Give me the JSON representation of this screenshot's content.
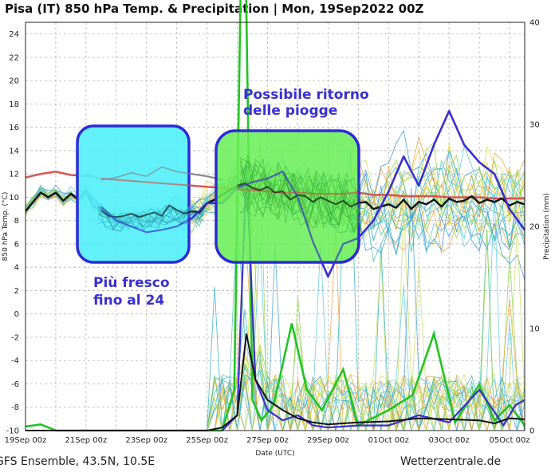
{
  "chart_data": {
    "type": "line",
    "title": "Pisa  (IT)  850 hPa Temp. & Precipitation | Mon, 19Sep2022 00Z",
    "xlabel": "Date (UTC)",
    "ylabel": "850 hPa Temp. (°C)",
    "y2label": "Precipitation (mm)",
    "xticks": [
      "19Sep 00z",
      "21Sep 00z",
      "23Sep 00z",
      "25Sep 00z",
      "27Sep 00z",
      "29Sep 00z",
      "01Oct 00z",
      "03Oct 00z",
      "05Oct 00z"
    ],
    "xrange_days": [
      0,
      16.5
    ],
    "ylim": [
      -10,
      25
    ],
    "yticks": [
      "24",
      "22",
      "20",
      "18",
      "16",
      "14",
      "12",
      "10",
      "8",
      "6",
      "4",
      "2",
      "0",
      "-2",
      "-4",
      "-6",
      "-8",
      "-10"
    ],
    "y2lim": [
      0,
      40
    ],
    "y2ticks": [
      "40",
      "30",
      "20",
      "10",
      "0"
    ],
    "grid": true,
    "footer_left": "GFS Ensemble, 43.5N, 10.5E",
    "footer_right": "Wetterzentrale.de",
    "colors": {
      "climate": "#d9534f",
      "operational": "#3a2fd0",
      "control": "#8a8a8a",
      "mean": "#111111",
      "precip_op": "#22c422",
      "member_palette": [
        "#2ab0c8",
        "#5cc7e8",
        "#3e9bd6",
        "#8fd14f",
        "#e8d84a",
        "#f0a040",
        "#c8e060",
        "#4cc3a8"
      ],
      "box_cyan_fill": "#55f0fa",
      "box_green_fill": "#66ee55",
      "box_stroke": "#2e2ad6",
      "annotation_text": "#3a2fd0"
    },
    "series": [
      {
        "role": "climate",
        "x": [
          0,
          0.5,
          1,
          1.5,
          2,
          2.5,
          3,
          3.5,
          4,
          4.5,
          5,
          5.5,
          6,
          6.5,
          7,
          7.5,
          8,
          8.5,
          9,
          9.5,
          10,
          10.5,
          11,
          11.5,
          12,
          12.5,
          13,
          13.5,
          14,
          14.5,
          15,
          15.5,
          16,
          16.5
        ],
        "values": [
          11.7,
          12.0,
          12.2,
          11.9,
          11.8,
          11.6,
          11.5,
          11.4,
          11.3,
          11.2,
          11.1,
          11.0,
          10.9,
          10.8,
          10.7,
          10.6,
          10.5,
          10.4,
          10.4,
          10.3,
          10.3,
          10.3,
          10.4,
          10.2,
          10.2,
          10.1,
          10.1,
          10.1,
          10.0,
          10.0,
          10.0,
          9.9,
          9.9,
          9.9
        ]
      },
      {
        "role": "control",
        "x": [
          2,
          2.5,
          3,
          3.5,
          4,
          4.5,
          5,
          5.5,
          6,
          6.5
        ],
        "values": [
          12.0,
          11.5,
          11.7,
          12.1,
          11.8,
          12.6,
          12.2,
          12.0,
          11.8,
          11.5
        ]
      },
      {
        "role": "mean",
        "x": [
          0,
          0.25,
          0.5,
          0.75,
          1,
          1.25,
          1.5,
          1.75,
          2,
          2.25,
          2.5,
          2.75,
          3,
          3.25,
          3.5,
          3.75,
          4,
          4.25,
          4.5,
          4.75,
          5,
          5.25,
          5.5,
          5.75,
          6,
          6.25,
          6.5,
          6.75,
          7,
          7.25,
          7.5,
          7.75,
          8,
          8.25,
          8.5,
          8.75,
          9,
          9.25,
          9.5,
          9.75,
          10,
          10.25,
          10.5,
          10.75,
          11,
          11.25,
          11.5,
          11.75,
          12,
          12.25,
          12.5,
          12.75,
          13,
          13.25,
          13.5,
          13.75,
          14,
          14.25,
          14.5,
          14.75,
          15,
          15.25,
          15.5,
          15.75,
          16,
          16.25,
          16.5
        ],
        "values": [
          8.8,
          9.6,
          10.4,
          10.0,
          10.4,
          9.7,
          10.3,
          9.8,
          10.6,
          9.2,
          8.9,
          8.4,
          8.3,
          8.4,
          8.6,
          8.3,
          8.5,
          8.7,
          8.4,
          9.3,
          8.9,
          8.6,
          8.8,
          8.7,
          9.5,
          9.8,
          10.2,
          10.6,
          11.0,
          11.2,
          10.8,
          10.6,
          10.9,
          10.4,
          10.5,
          9.8,
          10.2,
          10.1,
          9.6,
          10.0,
          9.7,
          9.4,
          9.7,
          9.2,
          9.5,
          9.6,
          9.0,
          9.2,
          9.4,
          9.1,
          9.8,
          9.0,
          9.6,
          9.4,
          9.8,
          9.2,
          9.9,
          9.6,
          9.7,
          10.1,
          9.5,
          9.8,
          9.6,
          9.9,
          9.3,
          9.6,
          9.4
        ]
      },
      {
        "role": "operational",
        "x": [
          2,
          2.5,
          3,
          3.5,
          4,
          4.5,
          5,
          5.5,
          6,
          6.5,
          7,
          7.5,
          8,
          8.5,
          9,
          9.5,
          10,
          10.5,
          11,
          11.5,
          12,
          12.5,
          13,
          13.5,
          14,
          14.5,
          15,
          15.5,
          16,
          16.5
        ],
        "values": [
          10.5,
          9.2,
          8.0,
          7.5,
          7.0,
          7.2,
          7.5,
          8.2,
          9.5,
          9.5,
          10.8,
          11.3,
          11.6,
          12.2,
          10.0,
          6.2,
          3.2,
          6.0,
          6.5,
          8.0,
          10.5,
          13.5,
          11.0,
          14.5,
          17.4,
          14.5,
          13.0,
          12.0,
          9.0,
          7.2
        ]
      }
    ],
    "annotations": [
      {
        "text_lines": [
          "Più fresco",
          "fino al 24"
        ]
      },
      {
        "text_lines": [
          "Possibile ritorno",
          "delle piogge"
        ]
      }
    ]
  }
}
